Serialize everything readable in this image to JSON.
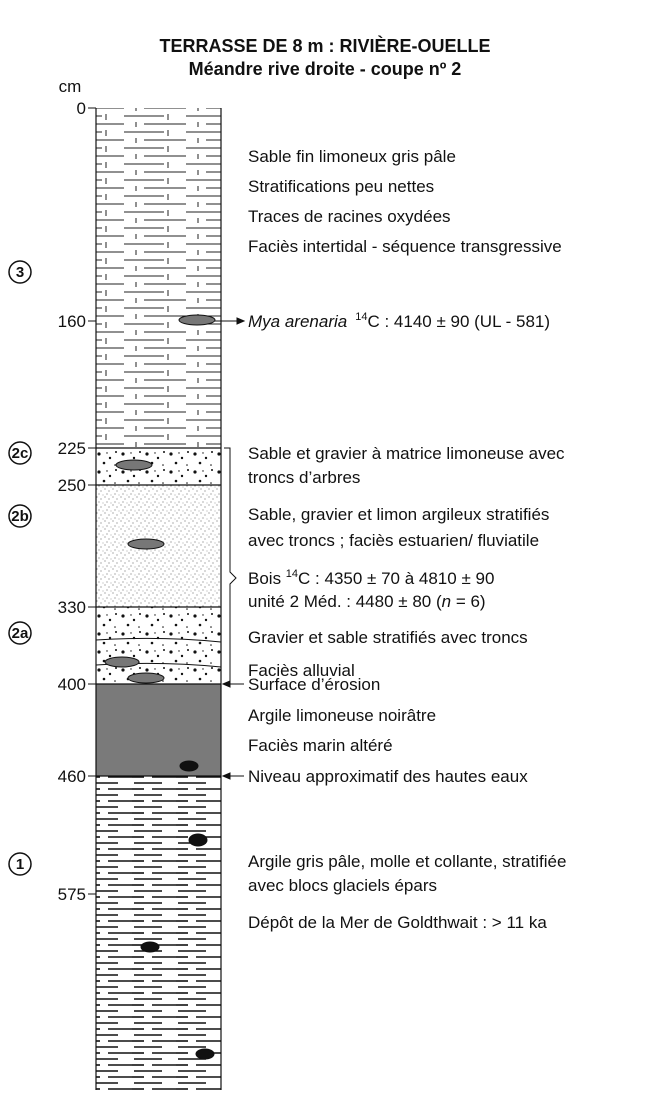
{
  "title": [
    "TERRASSE DE 8 m : RIVIÈRE-OUELLE",
    "Méandre rive droite - coupe nº 2"
  ],
  "axis_unit": "cm",
  "depth_ticks": [
    0,
    160,
    225,
    250,
    330,
    400,
    460,
    575
  ],
  "units": [
    "3",
    "2c",
    "2b",
    "2a",
    "1"
  ],
  "descriptions": {
    "unit3": [
      "Sable fin limoneux gris pâle",
      "Stratifications peu nettes",
      "Traces de racines oxydées",
      "Faciès intertidal - séquence transgressive"
    ],
    "mya": {
      "species": "Mya arenaria",
      "isotope": "14",
      "text": "C : 4140 ± 90 (UL - 581)"
    },
    "unit2c": [
      "Sable et gravier à matrice limoneuse avec",
      "troncs d’arbres"
    ],
    "unit2b": [
      "Sable, gravier et limon argileux stratifiés",
      "avec troncs ; faciès estuarien/ fluviatile"
    ],
    "bois": {
      "prefix": "Bois ",
      "isotope": "14",
      "text": "C : 4350 ± 70 à 4810 ± 90",
      "line2_start": "unité 2 Méd. : 4480 ± 80 (",
      "n": "n",
      "line2_end": " = 6)"
    },
    "unit2a": [
      "Gravier et sable stratifiés avec troncs",
      "Faciès alluvial"
    ],
    "erosion": "Surface d’érosion",
    "argile": [
      "Argile limoneuse noirâtre",
      "Faciès marin altéré"
    ],
    "hautes_eaux": "Niveau approximatif des hautes eaux",
    "unit1": [
      "Argile gris pâle, molle et collante, stratifiée",
      "avec blocs glaciels épars",
      "Dépôt de la Mer de Goldthwait : > 11 ka"
    ]
  }
}
